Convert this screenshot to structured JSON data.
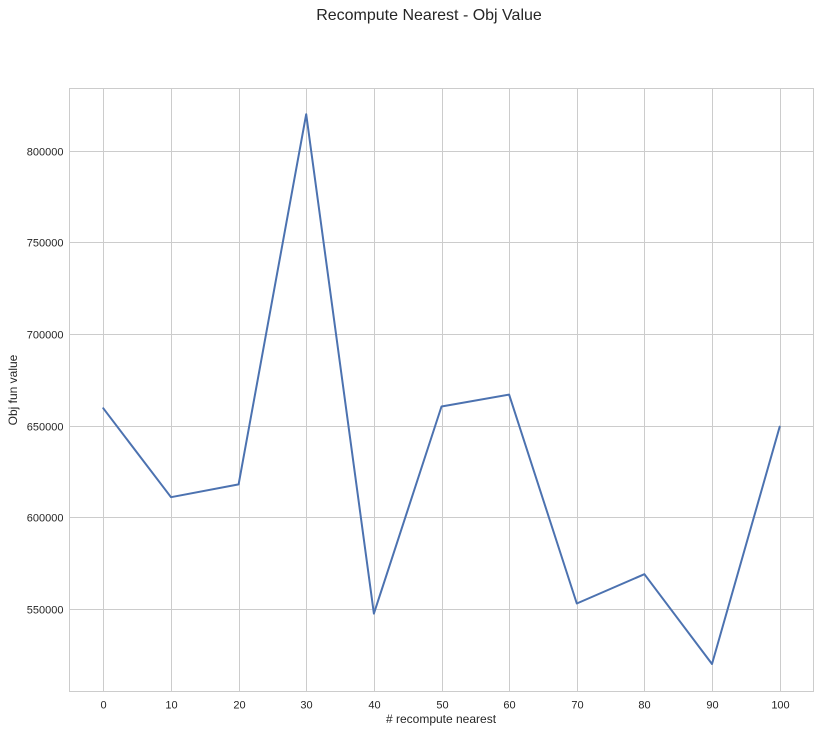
{
  "chart_data": {
    "type": "line",
    "title": "Recompute Nearest - Obj Value",
    "xlabel": "# recompute nearest",
    "ylabel": "Obj fun value",
    "x": [
      0,
      10,
      20,
      30,
      40,
      50,
      60,
      70,
      80,
      90,
      100
    ],
    "series": [
      {
        "values": [
          659500,
          611000,
          618000,
          820000,
          547500,
          660500,
          667000,
          553000,
          569000,
          520000,
          649500
        ]
      }
    ],
    "xticks": [
      0,
      10,
      20,
      30,
      40,
      50,
      60,
      70,
      80,
      90,
      100
    ],
    "yticks": [
      550000,
      600000,
      650000,
      700000,
      750000,
      800000
    ],
    "xlim": [
      -5,
      105
    ],
    "ylim": [
      505000,
      834000
    ],
    "grid": true,
    "colors": {
      "series": "#4c72b0",
      "grid": "#cccccc",
      "text": "#262626"
    }
  }
}
